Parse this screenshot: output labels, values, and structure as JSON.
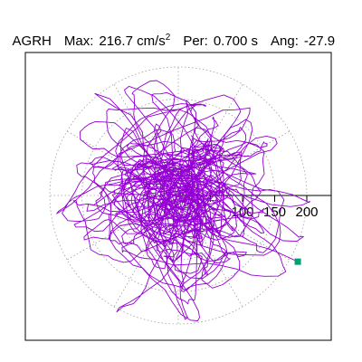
{
  "header": {
    "station": "AGRH",
    "max_label": "Max:",
    "max_value": "216.7 cm/s",
    "max_exponent": "2",
    "per_label": "Per:",
    "per_value": "0.700 s",
    "ang_label": "Ang:",
    "ang_value": "-27.9"
  },
  "chart_data": {
    "type": "polar-orbit",
    "radial_ticks": [
      50,
      100,
      150,
      200
    ],
    "radial_tick_labels": [
      "100",
      "150",
      "200"
    ],
    "r_max_ring": 200,
    "colors": {
      "orbit": "#9400d3",
      "end_marker": "#009e73",
      "grid": "#a0a0a0",
      "axis": "#000000"
    },
    "end_point": {
      "x": 186,
      "y": -103
    },
    "grid": "dotted polar rings and spokes every 30 degrees",
    "trajectory_pattern": "dense random-walk particle orbit around origin, ending at the marked point"
  }
}
